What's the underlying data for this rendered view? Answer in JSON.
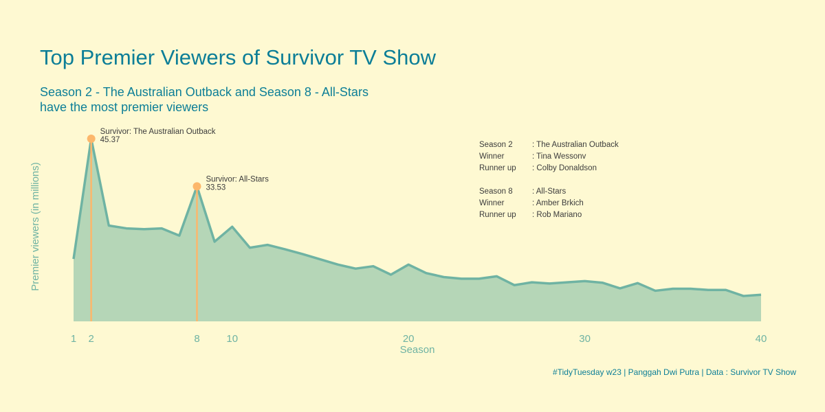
{
  "title": "Top Premier Viewers of Survivor TV Show",
  "subtitle_lines": [
    "Season 2 - The Australian Outback and Season 8 - All-Stars",
    "have the most premier viewers"
  ],
  "caption": "#TidyTuesday w23 | Panggah Dwi Putra | Data : Survivor TV Show",
  "colors": {
    "background": "#FEF9D2",
    "title": "#0C7E97",
    "area_fill": "#B5D6B7",
    "line": "#6FB3A3",
    "highlight": "#FCB76B",
    "text": "#3c3c3c"
  },
  "info_panel": {
    "season2": {
      "season_key": "Season 2",
      "season_val": ": The Australian Outback",
      "winner_key": "Winner",
      "winner_val": ": Tina Wessonv",
      "runner_key": "Runner up",
      "runner_val": ": Colby Donaldson"
    },
    "season8": {
      "season_key": "Season 8",
      "season_val": ": All-Stars",
      "winner_key": "Winner",
      "winner_val": ": Amber Brkich",
      "runner_key": "Runner up",
      "runner_val": ": Rob Mariano"
    }
  },
  "chart_data": {
    "type": "area",
    "xlabel": "Season",
    "ylabel": "Premier viewers (in millions)",
    "x": [
      1,
      2,
      3,
      4,
      5,
      6,
      7,
      8,
      9,
      10,
      11,
      12,
      13,
      14,
      15,
      16,
      17,
      18,
      19,
      20,
      21,
      22,
      23,
      24,
      25,
      26,
      27,
      28,
      29,
      30,
      31,
      32,
      33,
      34,
      35,
      36,
      37,
      38,
      39,
      40
    ],
    "values": [
      15.5,
      45.37,
      23.8,
      23.1,
      22.9,
      23.1,
      21.3,
      33.53,
      19.8,
      23.5,
      18.3,
      19.0,
      17.9,
      16.7,
      15.4,
      14.1,
      13.1,
      13.7,
      11.6,
      14.1,
      12.0,
      11.0,
      10.6,
      10.6,
      11.2,
      9.0,
      9.7,
      9.4,
      9.7,
      10.0,
      9.6,
      8.2,
      9.5,
      7.6,
      8.1,
      8.1,
      7.8,
      7.8,
      6.3,
      6.6
    ],
    "ylim": [
      0,
      45.37
    ],
    "xlim": [
      1,
      40
    ],
    "x_ticks": [
      1,
      2,
      8,
      10,
      20,
      30,
      40
    ],
    "highlights": [
      {
        "season": 2,
        "value": 45.37,
        "label": "Survivor: The Australian Outback",
        "value_label": "45.37"
      },
      {
        "season": 8,
        "value": 33.53,
        "label": "Survivor: All-Stars",
        "value_label": "33.53"
      }
    ]
  }
}
